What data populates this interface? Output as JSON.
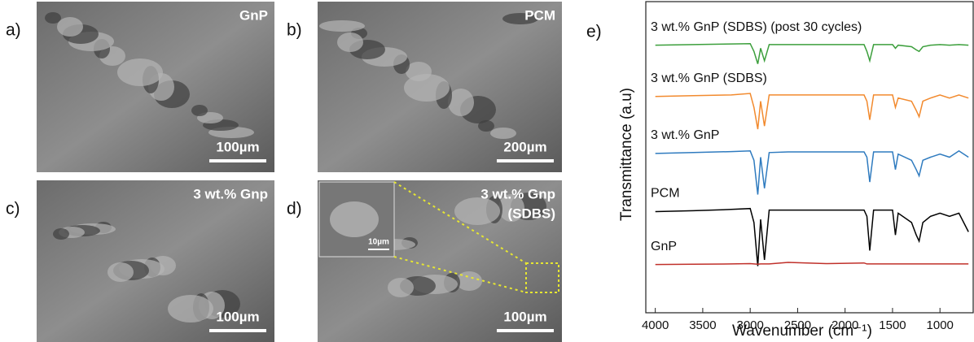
{
  "panels": [
    {
      "label": "a)",
      "name": "GnP",
      "scale": "100µm"
    },
    {
      "label": "b)",
      "name": "PCM",
      "scale": "200µm"
    },
    {
      "label": "c)",
      "name": "3 wt.% Gnp",
      "scale": "100µm"
    },
    {
      "label": "d)",
      "name": "3 wt.% Gnp",
      "name2": "(SDBS)",
      "scale": "100µm",
      "inset_scale": "10µm"
    }
  ],
  "chart_data": {
    "type": "line",
    "panel_label": "e)",
    "x_label": "Wavenumber (cm⁻¹)",
    "y_label": "Transmittance (a.u)",
    "x": [
      4000,
      3600,
      3200,
      3000,
      2960,
      2920,
      2890,
      2850,
      2800,
      2600,
      2200,
      1800,
      1770,
      1740,
      1700,
      1500,
      1470,
      1440,
      1300,
      1250,
      1220,
      1180,
      1100,
      1000,
      900,
      800,
      700
    ],
    "xlim": [
      4100,
      650
    ],
    "xticks": [
      4000,
      3500,
      3000,
      2500,
      2000,
      1500,
      1000
    ],
    "ylim": [
      0,
      10
    ],
    "series": [
      {
        "name": "3 wt.% GnP (SDBS) (post 30 cycles)",
        "color": "#3c9f3c",
        "values": [
          8.6,
          8.62,
          8.64,
          8.65,
          8.4,
          8.0,
          8.5,
          8.1,
          8.62,
          8.62,
          8.62,
          8.62,
          8.4,
          8.1,
          8.62,
          8.62,
          8.5,
          8.6,
          8.55,
          8.45,
          8.4,
          8.55,
          8.6,
          8.62,
          8.6,
          8.62,
          8.6
        ]
      },
      {
        "name": "3 wt.% GnP (SDBS)",
        "color": "#f28a2e",
        "values": [
          6.95,
          6.98,
          7.0,
          7.05,
          6.6,
          5.9,
          6.8,
          6.0,
          7.0,
          7.0,
          7.0,
          7.0,
          6.8,
          6.2,
          7.0,
          7.0,
          6.6,
          6.9,
          6.8,
          6.5,
          6.3,
          6.8,
          6.9,
          7.0,
          6.9,
          7.0,
          6.9
        ]
      },
      {
        "name": "3 wt.% GnP",
        "color": "#2f7bbf",
        "values": [
          5.12,
          5.15,
          5.18,
          5.2,
          4.9,
          3.8,
          5.0,
          4.0,
          5.15,
          5.17,
          5.17,
          5.17,
          5.0,
          4.2,
          5.17,
          5.17,
          4.6,
          5.1,
          4.9,
          4.6,
          4.4,
          4.9,
          5.0,
          5.1,
          5.0,
          5.2,
          5.0
        ]
      },
      {
        "name": "PCM",
        "color": "#000000",
        "values": [
          3.25,
          3.28,
          3.32,
          3.35,
          2.9,
          1.5,
          3.0,
          1.7,
          3.3,
          3.3,
          3.3,
          3.3,
          3.1,
          2.0,
          3.3,
          3.3,
          2.5,
          3.2,
          2.9,
          2.5,
          2.3,
          2.9,
          3.1,
          3.2,
          3.1,
          3.2,
          2.6
        ]
      },
      {
        "name": "GnP",
        "color": "#c0302a",
        "values": [
          1.55,
          1.56,
          1.57,
          1.58,
          1.57,
          1.56,
          1.57,
          1.57,
          1.57,
          1.62,
          1.58,
          1.6,
          1.57,
          1.57,
          1.57,
          1.57,
          1.57,
          1.57,
          1.57,
          1.57,
          1.57,
          1.57,
          1.57,
          1.57,
          1.57,
          1.57,
          1.57
        ]
      }
    ]
  }
}
